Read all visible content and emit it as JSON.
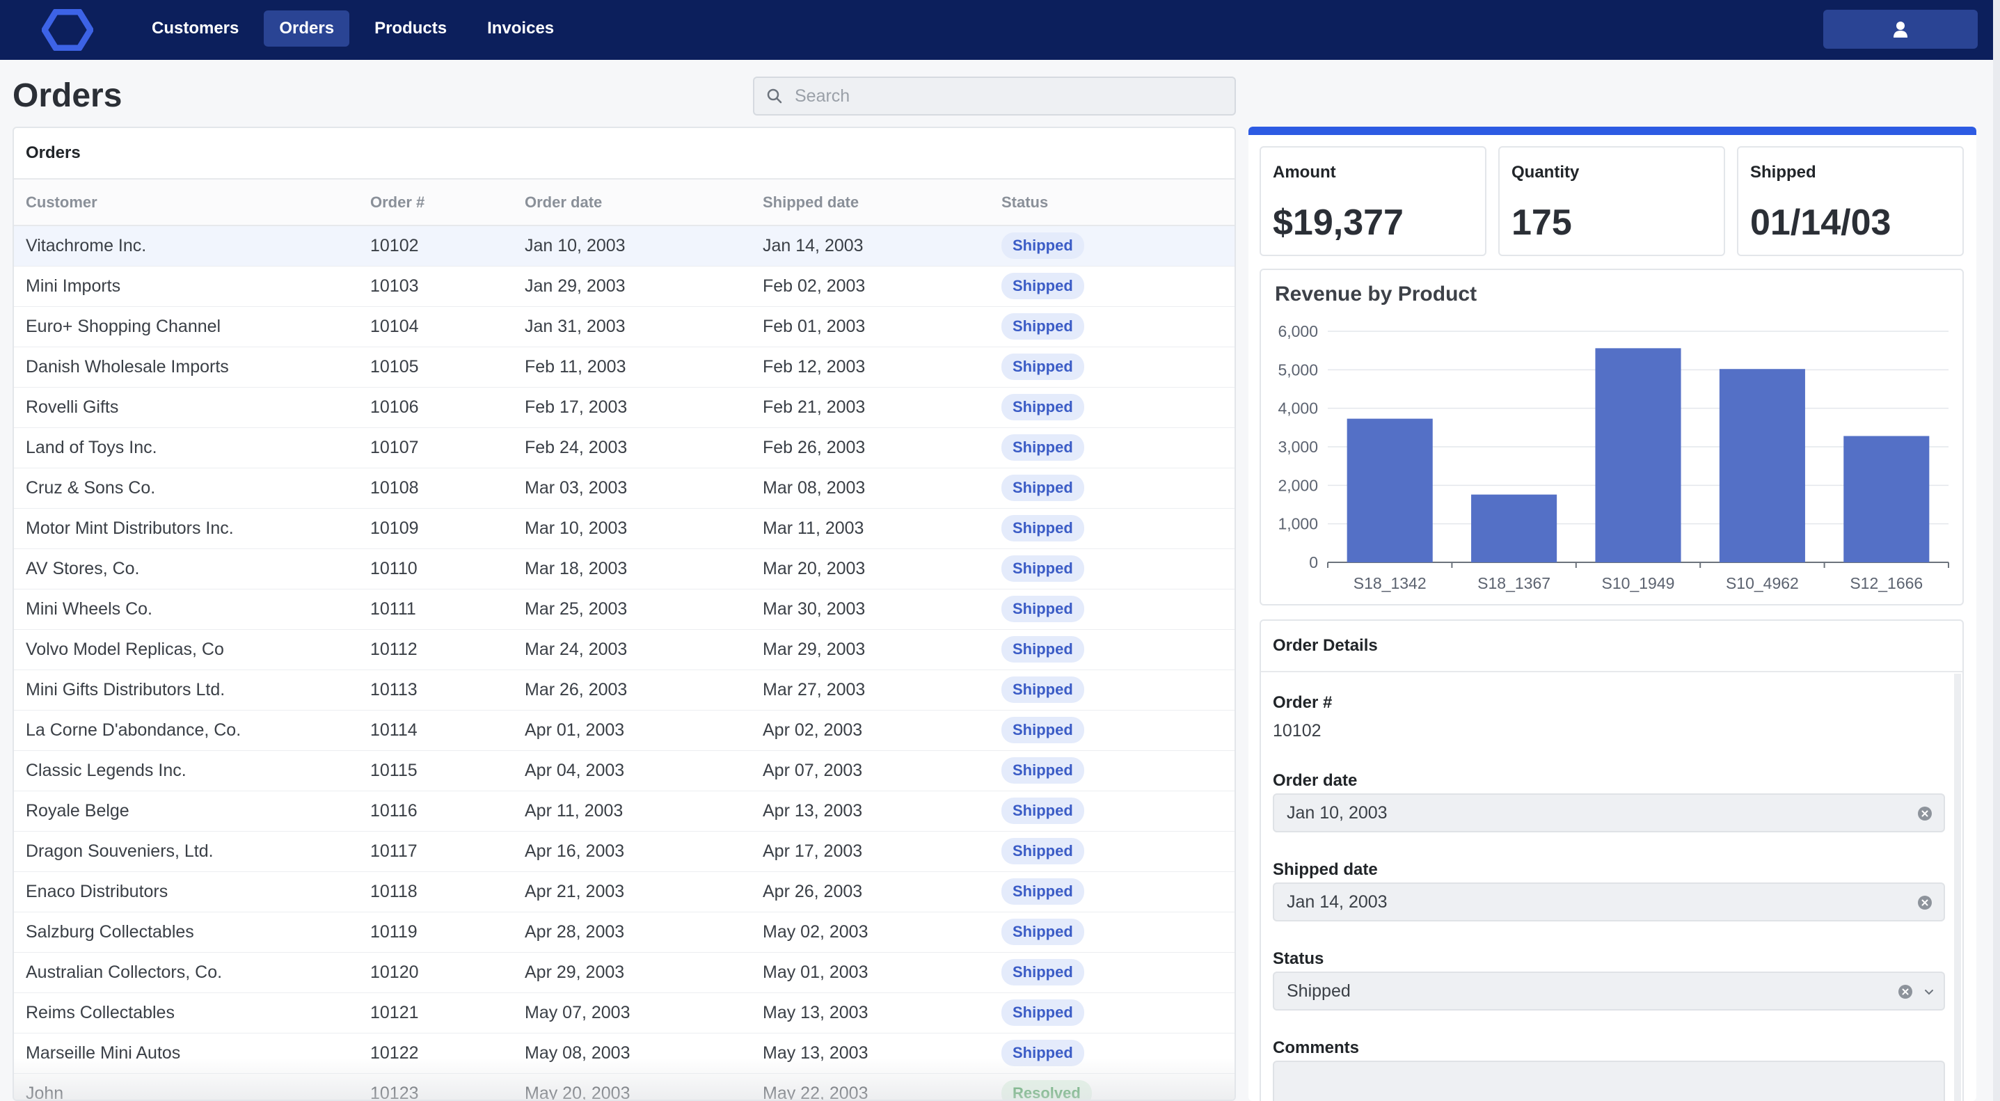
{
  "nav": {
    "items": [
      {
        "label": "Customers",
        "active": false
      },
      {
        "label": "Orders",
        "active": true
      },
      {
        "label": "Products",
        "active": false
      },
      {
        "label": "Invoices",
        "active": false
      }
    ],
    "logo_icon": "hexagon-logo-icon",
    "user_icon": "user-icon"
  },
  "page": {
    "title": "Orders",
    "search_placeholder": "Search"
  },
  "orders_table": {
    "title": "Orders",
    "columns": [
      "Customer",
      "Order #",
      "Order date",
      "Shipped date",
      "Status"
    ],
    "rows": [
      {
        "customer": "Vitachrome Inc.",
        "order": "10102",
        "order_date": "Jan 10, 2003",
        "shipped_date": "Jan 14, 2003",
        "status": "Shipped"
      },
      {
        "customer": "Mini Imports",
        "order": "10103",
        "order_date": "Jan 29, 2003",
        "shipped_date": "Feb 02, 2003",
        "status": "Shipped"
      },
      {
        "customer": "Euro+ Shopping Channel",
        "order": "10104",
        "order_date": "Jan 31, 2003",
        "shipped_date": "Feb 01, 2003",
        "status": "Shipped"
      },
      {
        "customer": "Danish Wholesale Imports",
        "order": "10105",
        "order_date": "Feb 11, 2003",
        "shipped_date": "Feb 12, 2003",
        "status": "Shipped"
      },
      {
        "customer": "Rovelli Gifts",
        "order": "10106",
        "order_date": "Feb 17, 2003",
        "shipped_date": "Feb 21, 2003",
        "status": "Shipped"
      },
      {
        "customer": "Land of Toys Inc.",
        "order": "10107",
        "order_date": "Feb 24, 2003",
        "shipped_date": "Feb 26, 2003",
        "status": "Shipped"
      },
      {
        "customer": "Cruz & Sons Co.",
        "order": "10108",
        "order_date": "Mar 03, 2003",
        "shipped_date": "Mar 08, 2003",
        "status": "Shipped"
      },
      {
        "customer": "Motor Mint Distributors Inc.",
        "order": "10109",
        "order_date": "Mar 10, 2003",
        "shipped_date": "Mar 11, 2003",
        "status": "Shipped"
      },
      {
        "customer": "AV Stores, Co.",
        "order": "10110",
        "order_date": "Mar 18, 2003",
        "shipped_date": "Mar 20, 2003",
        "status": "Shipped"
      },
      {
        "customer": "Mini Wheels Co.",
        "order": "10111",
        "order_date": "Mar 25, 2003",
        "shipped_date": "Mar 30, 2003",
        "status": "Shipped"
      },
      {
        "customer": "Volvo Model Replicas, Co",
        "order": "10112",
        "order_date": "Mar 24, 2003",
        "shipped_date": "Mar 29, 2003",
        "status": "Shipped"
      },
      {
        "customer": "Mini Gifts Distributors Ltd.",
        "order": "10113",
        "order_date": "Mar 26, 2003",
        "shipped_date": "Mar 27, 2003",
        "status": "Shipped"
      },
      {
        "customer": "La Corne D'abondance, Co.",
        "order": "10114",
        "order_date": "Apr 01, 2003",
        "shipped_date": "Apr 02, 2003",
        "status": "Shipped"
      },
      {
        "customer": "Classic Legends Inc.",
        "order": "10115",
        "order_date": "Apr 04, 2003",
        "shipped_date": "Apr 07, 2003",
        "status": "Shipped"
      },
      {
        "customer": "Royale Belge",
        "order": "10116",
        "order_date": "Apr 11, 2003",
        "shipped_date": "Apr 13, 2003",
        "status": "Shipped"
      },
      {
        "customer": "Dragon Souveniers, Ltd.",
        "order": "10117",
        "order_date": "Apr 16, 2003",
        "shipped_date": "Apr 17, 2003",
        "status": "Shipped"
      },
      {
        "customer": "Enaco Distributors",
        "order": "10118",
        "order_date": "Apr 21, 2003",
        "shipped_date": "Apr 26, 2003",
        "status": "Shipped"
      },
      {
        "customer": "Salzburg Collectables",
        "order": "10119",
        "order_date": "Apr 28, 2003",
        "shipped_date": "May 02, 2003",
        "status": "Shipped"
      },
      {
        "customer": "Australian Collectors, Co.",
        "order": "10120",
        "order_date": "Apr 29, 2003",
        "shipped_date": "May 01, 2003",
        "status": "Shipped"
      },
      {
        "customer": "Reims Collectables",
        "order": "10121",
        "order_date": "May 07, 2003",
        "shipped_date": "May 13, 2003",
        "status": "Shipped"
      },
      {
        "customer": "Marseille Mini Autos",
        "order": "10122",
        "order_date": "May 08, 2003",
        "shipped_date": "May 13, 2003",
        "status": "Shipped"
      },
      {
        "customer": "John",
        "order": "10123",
        "order_date": "May 20, 2003",
        "shipped_date": "May 22, 2003",
        "status": "Resolved"
      }
    ]
  },
  "stats": {
    "amount": {
      "label": "Amount",
      "value": "$19,377"
    },
    "quantity": {
      "label": "Quantity",
      "value": "175"
    },
    "shipped": {
      "label": "Shipped",
      "value": "01/14/03"
    }
  },
  "chart_data": {
    "type": "bar",
    "title": "Revenue by Product",
    "categories": [
      "S18_1342",
      "S18_1367",
      "S10_1949",
      "S10_4962",
      "S12_1666"
    ],
    "values": [
      3730,
      1760,
      5560,
      5020,
      3280
    ],
    "ylim": [
      0,
      6000
    ],
    "yticks": [
      0,
      1000,
      2000,
      3000,
      4000,
      5000,
      6000
    ],
    "ytick_labels": [
      "0",
      "1,000",
      "2,000",
      "3,000",
      "4,000",
      "5,000",
      "6,000"
    ],
    "grid": true,
    "bar_color": "#5470c6"
  },
  "details": {
    "title": "Order Details",
    "order_label": "Order #",
    "order_value": "10102",
    "order_date_label": "Order date",
    "order_date_value": "Jan 10, 2003",
    "shipped_date_label": "Shipped date",
    "shipped_date_value": "Jan 14, 2003",
    "status_label": "Status",
    "status_value": "Shipped",
    "comments_label": "Comments",
    "comments_value": ""
  },
  "colors": {
    "navbar": "#0c1f5c",
    "nav_active": "#2a4494",
    "accent": "#2d5be3",
    "shipped_badge_text": "#3b5cc6",
    "resolved_badge_text": "#3f9a52"
  }
}
